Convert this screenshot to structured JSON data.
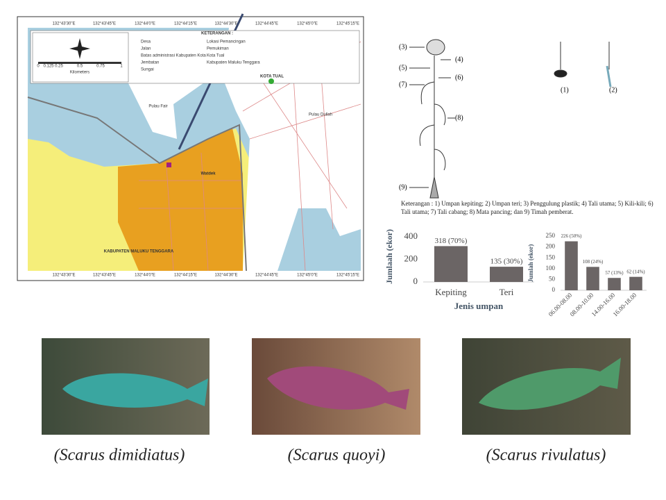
{
  "map": {
    "legend_title": "KETERANGAN :",
    "legend_items": [
      "Desa",
      "Jalan",
      "Batas administrasi Kabupaten Kota",
      "Jembatan",
      "Sungai",
      "Lokasi Pemancingan",
      "Pemukiman",
      "Kota Tual",
      "Kabupaten Maluku Tenggara"
    ],
    "scale_labels": [
      "0",
      "0.125",
      "0.25",
      "0.5",
      "0.75",
      "1"
    ],
    "scale_unit": "Kilometers",
    "places": [
      "Pulau Fair",
      "Pulau Dullah",
      "KOTA TUAL",
      "Watdek",
      "KABUPATEN MALUKU TENGGARA"
    ],
    "longitudes": [
      "132°43'30\"E",
      "132°43'45\"E",
      "132°44'0\"E",
      "132°44'15\"E",
      "132°44'30\"E",
      "132°44'45\"E",
      "132°45'0\"E",
      "132°45'15\"E"
    ]
  },
  "diagram": {
    "labels": [
      "(3)",
      "(4)",
      "(5)",
      "(6)",
      "(7)",
      "(8)",
      "(9)",
      "(1)",
      "(2)"
    ],
    "caption": "Keterangan : 1) Umpan kepiting; 2) Umpan teri; 3) Penggulung plastik; 4) Tali utama; 5) Kili-kili; 6) Tali utama; 7) Tali cabang; 8) Mata pancing; dan 9) Timah pemberat."
  },
  "chart_data": [
    {
      "type": "bar",
      "x_label": "Jenis umpan",
      "y_label": "Jumlaah (ekor)",
      "categories": [
        "Kepiting",
        "Teri"
      ],
      "values": [
        318,
        135
      ],
      "value_labels": [
        "318 (70%)",
        "135 (30%)"
      ],
      "color": "#6b6565",
      "ylim": [
        0,
        450
      ],
      "yticks": [
        0,
        200,
        400
      ]
    },
    {
      "type": "bar",
      "y_label": "Jumlah (ekor)",
      "categories": [
        "06.00-08.00",
        "08.00-10.00",
        "14.00-16.00",
        "16.00-18.00"
      ],
      "values": [
        226,
        108,
        57,
        62
      ],
      "value_labels": [
        "226 (50%)",
        "108 (24%)",
        "57 (13%)",
        "62 (14%)"
      ],
      "color": "#6b6565",
      "ylim": [
        0,
        250
      ],
      "yticks": [
        0,
        50,
        100,
        150,
        200,
        250
      ]
    }
  ],
  "photos": [
    "(Scarus dimidiatus)",
    "(Scarus quoyi)",
    "(Scarus rivulatus)"
  ]
}
